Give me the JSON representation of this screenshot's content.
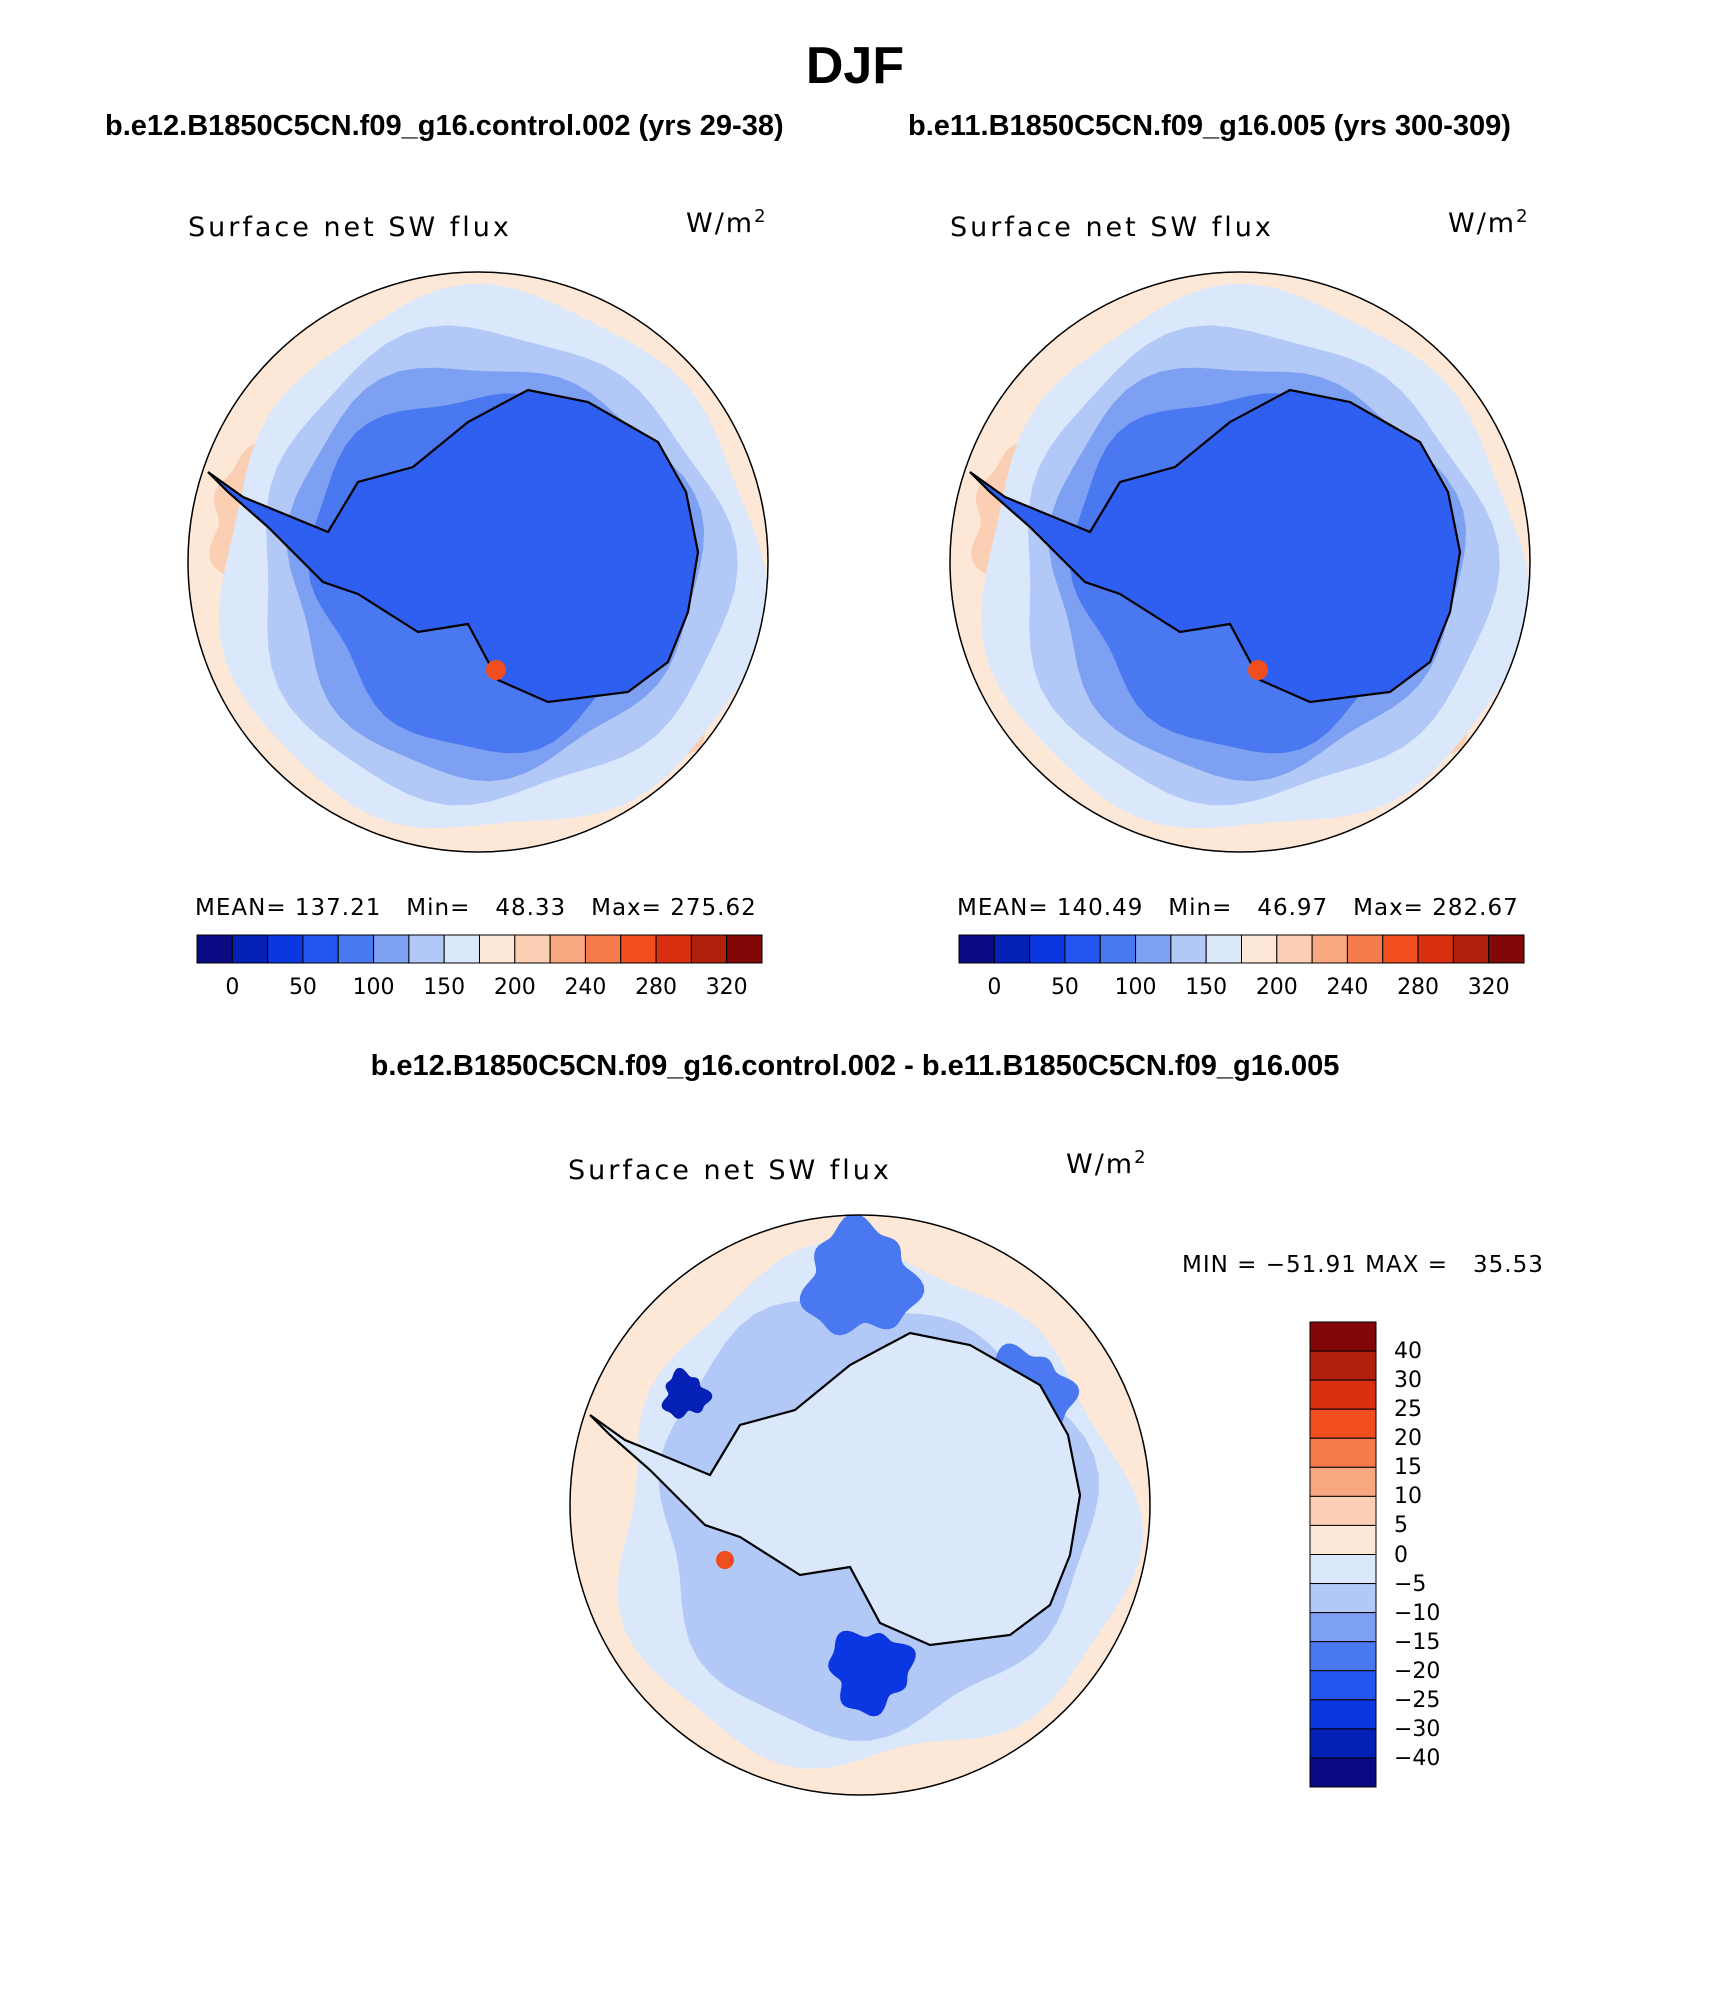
{
  "page": {
    "title": "DJF"
  },
  "colors": {
    "scale": [
      "#0a0a82",
      "#0520b4",
      "#0a37e1",
      "#2355f0",
      "#4a78f0",
      "#7ea0f2",
      "#b2c8f7",
      "#dbe8fb",
      "#fde8d7",
      "#fbcfb3",
      "#f7a880",
      "#f57a4c",
      "#f04e1e",
      "#d83010",
      "#b01e0c",
      "#820808"
    ],
    "land": "#2e5ff0",
    "land_diff": "#dbe8fb",
    "coast": "#000000"
  },
  "panels": {
    "left": {
      "case_title": "b.e12.B1850C5CN.f09_g16.control.002 (yrs 29-38)",
      "variable": "Surface net SW flux",
      "units": "W/m",
      "units_exp": "2",
      "stats": "MEAN= 137.21   Min=   48.33   Max= 275.62",
      "mean": 137.21,
      "min": 48.33,
      "max": 275.62
    },
    "right": {
      "case_title": "b.e11.B1850C5CN.f09_g16.005 (yrs 300-309)",
      "variable": "Surface net SW flux",
      "units": "W/m",
      "units_exp": "2",
      "stats": "MEAN= 140.49   Min=   46.97   Max= 282.67",
      "mean": 140.49,
      "min": 46.97,
      "max": 282.67
    },
    "diff": {
      "title": "b.e12.B1850C5CN.f09_g16.control.002 - b.e11.B1850C5CN.f09_g16.005",
      "variable": "Surface net SW flux",
      "units": "W/m",
      "units_exp": "2",
      "stats": "MIN = −51.91 MAX =   35.53",
      "min": -51.91,
      "max": 35.53
    }
  },
  "colorbar_main": {
    "tick_labels": [
      "0",
      "50",
      "100",
      "150",
      "200",
      "240",
      "280",
      "320"
    ],
    "tick_boundary_index": [
      1,
      2,
      3,
      4,
      5,
      6,
      7,
      8,
      9,
      10,
      11,
      12,
      13,
      14,
      15
    ]
  },
  "colorbar_diff": {
    "tick_labels": [
      "40",
      "30",
      "25",
      "20",
      "15",
      "10",
      "5",
      "0",
      "−5",
      "−10",
      "−15",
      "−20",
      "−25",
      "−30",
      "−40"
    ],
    "levels": [
      40,
      30,
      25,
      20,
      15,
      10,
      5,
      0,
      -5,
      -10,
      -15,
      -20,
      -25,
      -30,
      -40
    ]
  }
}
